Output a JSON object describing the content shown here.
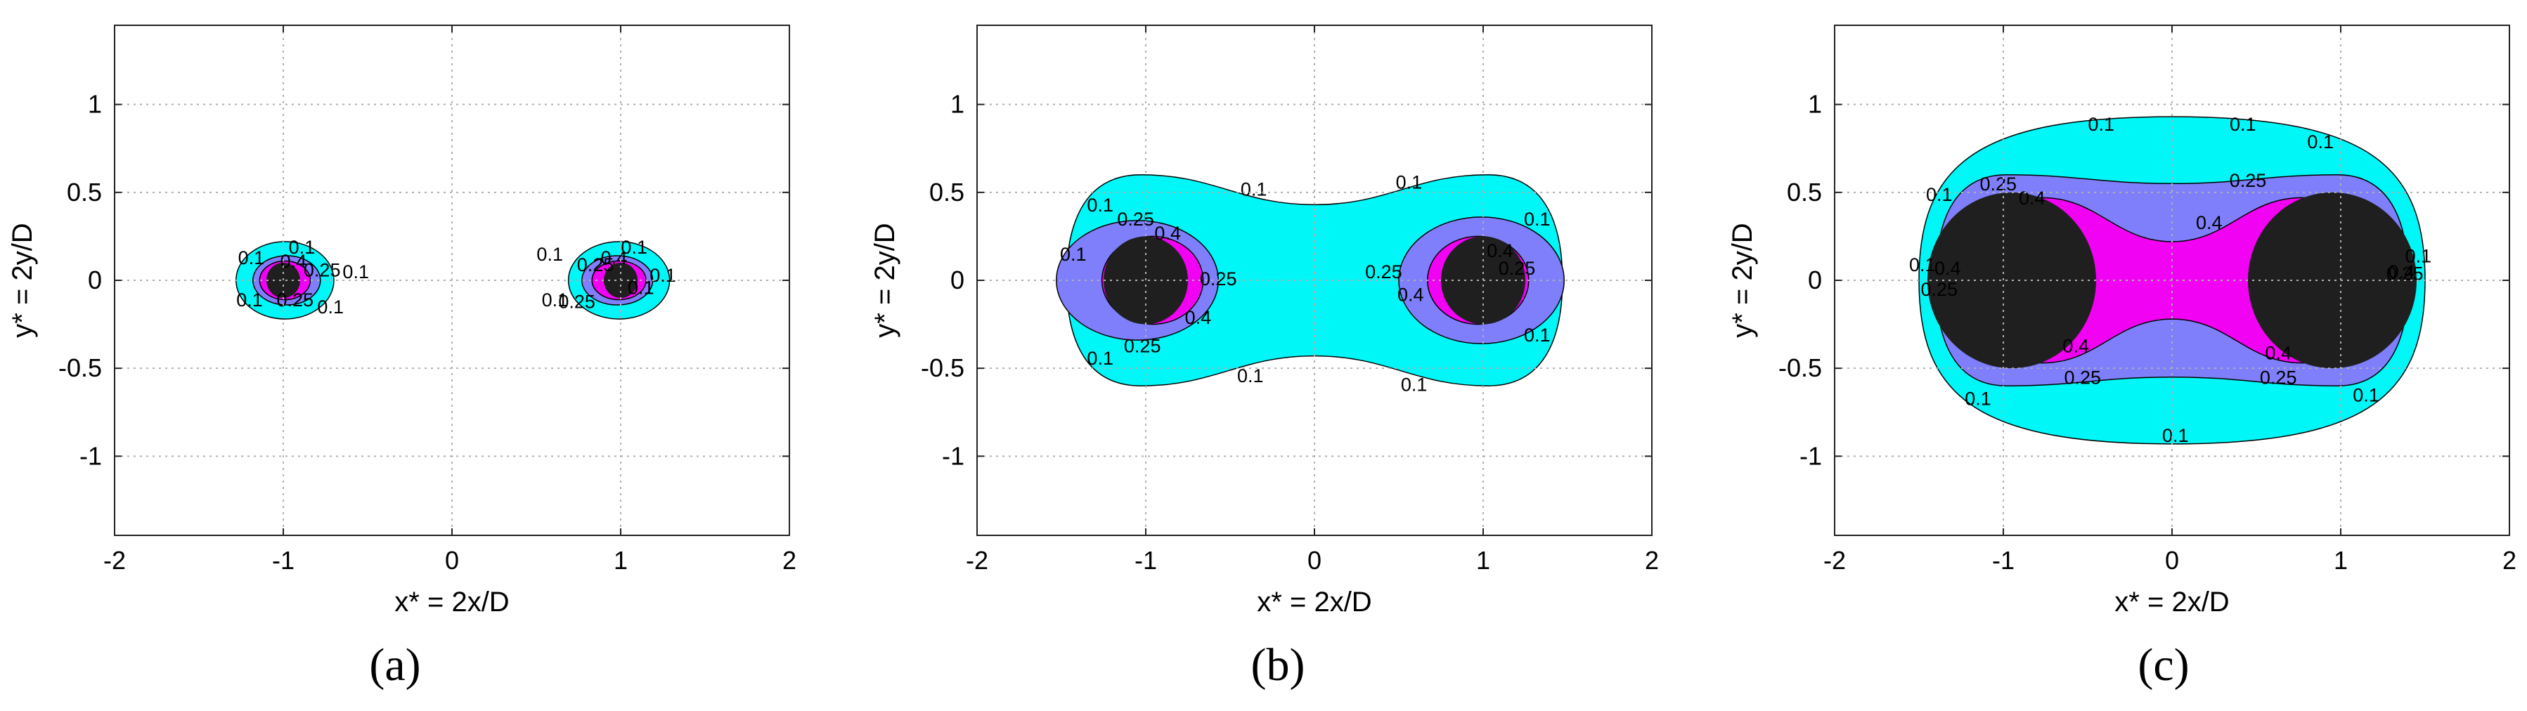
{
  "figure": {
    "panel_labels": [
      "(a)",
      "(b)",
      "(c)"
    ],
    "colors": {
      "level_0_1": "#00f7f7",
      "level_0_25": "#7f7ffb",
      "level_0_4": "#f202f2",
      "cylinder": "#1f1f1f",
      "contour_line": "#000000"
    }
  },
  "chart_data": [
    {
      "type": "contour",
      "panel": "(a)",
      "xlabel": "x* = 2x/D",
      "ylabel": "y* = 2y/D",
      "xlim": [
        -2,
        2
      ],
      "ylim": [
        -1.45,
        1.45
      ],
      "xticks": [
        -2,
        -1,
        0,
        1,
        2
      ],
      "yticks": [
        -1,
        -0.5,
        0,
        0.5,
        1
      ],
      "grid": true,
      "levels": [
        0.1,
        0.25,
        0.4
      ],
      "cylinders": [
        {
          "center": [
            -1,
            0
          ],
          "radius": 0.1
        },
        {
          "center": [
            1,
            0
          ],
          "radius": 0.1
        }
      ],
      "regions": [
        {
          "level": 0.1,
          "shapes": [
            {
              "cx": -0.99,
              "cy": 0.0,
              "rx": 0.29,
              "ry": 0.22
            },
            {
              "cx": 0.99,
              "cy": 0.0,
              "rx": 0.3,
              "ry": 0.22
            }
          ]
        },
        {
          "level": 0.25,
          "shapes": [
            {
              "cx": -0.98,
              "cy": 0.0,
              "rx": 0.2,
              "ry": 0.14
            },
            {
              "cx": 0.98,
              "cy": 0.0,
              "rx": 0.21,
              "ry": 0.14
            }
          ]
        },
        {
          "level": 0.4,
          "shapes": [
            {
              "cx": -0.99,
              "cy": 0.0,
              "rx": 0.15,
              "ry": 0.11
            },
            {
              "cx": 0.99,
              "cy": 0.0,
              "rx": 0.16,
              "ry": 0.11
            }
          ]
        }
      ],
      "contour_labels": [
        {
          "text": "0.1",
          "x": -0.89,
          "y": 0.18
        },
        {
          "text": "0.1",
          "x": -1.19,
          "y": 0.12
        },
        {
          "text": "0.1",
          "x": -1.2,
          "y": -0.12
        },
        {
          "text": "0.1",
          "x": -0.72,
          "y": -0.16
        },
        {
          "text": "0.1",
          "x": -0.57,
          "y": 0.04
        },
        {
          "text": "0.25",
          "x": -0.77,
          "y": 0.05
        },
        {
          "text": "0.25",
          "x": -0.93,
          "y": -0.12
        },
        {
          "text": "0.4",
          "x": -0.94,
          "y": 0.1
        },
        {
          "text": "0.1",
          "x": 1.08,
          "y": 0.18
        },
        {
          "text": "0.1",
          "x": 0.58,
          "y": 0.14
        },
        {
          "text": "0.1",
          "x": 0.61,
          "y": -0.12
        },
        {
          "text": "0.1",
          "x": 1.12,
          "y": -0.05
        },
        {
          "text": "0.1",
          "x": 1.25,
          "y": 0.02
        },
        {
          "text": "0.25",
          "x": 0.85,
          "y": 0.08
        },
        {
          "text": "0.25",
          "x": 0.74,
          "y": -0.13
        },
        {
          "text": "0.4",
          "x": 0.96,
          "y": 0.12
        }
      ]
    },
    {
      "type": "contour",
      "panel": "(b)",
      "xlabel": "x* = 2x/D",
      "ylabel": "y* = 2y/D",
      "xlim": [
        -2,
        2
      ],
      "ylim": [
        -1.45,
        1.45
      ],
      "xticks": [
        -2,
        -1,
        0,
        1,
        2
      ],
      "yticks": [
        -1,
        -0.5,
        0,
        0.5,
        1
      ],
      "grid": true,
      "levels": [
        0.1,
        0.25,
        0.4
      ],
      "cylinders": [
        {
          "center": [
            -1,
            0
          ],
          "radius": 0.25
        },
        {
          "center": [
            1,
            0
          ],
          "radius": 0.25
        }
      ],
      "regions": [
        {
          "level": 0.1,
          "shapes": [
            {
              "kind": "peanut",
              "outer_x": 1.47,
              "peak_y": 0.6,
              "neck_y": 0.43
            }
          ]
        },
        {
          "level": 0.25,
          "shapes": [
            {
              "cx": -1.05,
              "cy": 0.0,
              "rx": 0.48,
              "ry": 0.34
            },
            {
              "cx": 0.99,
              "cy": 0.0,
              "rx": 0.49,
              "ry": 0.36
            }
          ]
        },
        {
          "level": 0.4,
          "shapes": [
            {
              "cx": -0.96,
              "cy": 0.0,
              "rx": 0.3,
              "ry": 0.25
            },
            {
              "cx": 0.97,
              "cy": 0.0,
              "rx": 0.3,
              "ry": 0.25
            }
          ]
        }
      ],
      "contour_labels": [
        {
          "text": "0.1",
          "x": -0.36,
          "y": 0.51
        },
        {
          "text": "0.1",
          "x": 0.56,
          "y": 0.55
        },
        {
          "text": "0.1",
          "x": -1.27,
          "y": 0.42
        },
        {
          "text": "0.1",
          "x": -1.43,
          "y": 0.14
        },
        {
          "text": "0.1",
          "x": -1.27,
          "y": -0.45
        },
        {
          "text": "0.1",
          "x": -0.38,
          "y": -0.55
        },
        {
          "text": "0.1",
          "x": 0.59,
          "y": -0.6
        },
        {
          "text": "0.1",
          "x": 1.32,
          "y": 0.34
        },
        {
          "text": "0.1",
          "x": 1.32,
          "y": -0.32
        },
        {
          "text": "0.25",
          "x": -1.06,
          "y": 0.34
        },
        {
          "text": "0.25",
          "x": -0.57,
          "y": 0.0
        },
        {
          "text": "0.25",
          "x": -1.02,
          "y": -0.38
        },
        {
          "text": "0.25",
          "x": 0.41,
          "y": 0.04
        },
        {
          "text": "0.25",
          "x": 1.2,
          "y": 0.06
        },
        {
          "text": "0.4",
          "x": -0.87,
          "y": 0.26
        },
        {
          "text": "0.4",
          "x": -0.69,
          "y": -0.22
        },
        {
          "text": "0.4",
          "x": 0.57,
          "y": -0.09
        },
        {
          "text": "0.4",
          "x": 1.1,
          "y": 0.16
        }
      ]
    },
    {
      "type": "contour",
      "panel": "(c)",
      "xlabel": "x* = 2x/D",
      "ylabel": "y* = 2y/D",
      "xlim": [
        -2,
        2
      ],
      "ylim": [
        -1.45,
        1.45
      ],
      "xticks": [
        -2,
        -1,
        0,
        1,
        2
      ],
      "yticks": [
        -1,
        -0.5,
        0,
        0.5,
        1
      ],
      "grid": true,
      "levels": [
        0.1,
        0.25,
        0.4
      ],
      "cylinders": [
        {
          "center": [
            -0.95,
            0
          ],
          "radius": 0.5
        },
        {
          "center": [
            0.95,
            0
          ],
          "radius": 0.5
        }
      ],
      "regions": [
        {
          "level": 0.1,
          "shapes": [
            {
              "kind": "stadium",
              "outer_x": 1.5,
              "top_y": 0.93
            }
          ]
        },
        {
          "level": 0.25,
          "shapes": [
            {
              "kind": "waisted",
              "outer_x": 1.4,
              "peak_y": 0.6,
              "neck_y": 0.55
            }
          ]
        },
        {
          "level": 0.4,
          "shapes": [
            {
              "kind": "waisted",
              "outer_x": 1.1,
              "peak_y": 0.47,
              "neck_y": 0.22
            }
          ]
        }
      ],
      "contour_labels": [
        {
          "text": "0.1",
          "x": -0.42,
          "y": 0.88
        },
        {
          "text": "0.1",
          "x": 0.42,
          "y": 0.88
        },
        {
          "text": "0.1",
          "x": 0.88,
          "y": 0.78
        },
        {
          "text": "0.1",
          "x": -1.38,
          "y": 0.48
        },
        {
          "text": "0.1",
          "x": -1.48,
          "y": 0.08
        },
        {
          "text": "0.1",
          "x": -1.15,
          "y": -0.68
        },
        {
          "text": "0.1",
          "x": 0.02,
          "y": -0.89
        },
        {
          "text": "0.1",
          "x": 1.15,
          "y": -0.66
        },
        {
          "text": "0.1",
          "x": 1.46,
          "y": 0.13
        },
        {
          "text": "0.25",
          "x": -1.03,
          "y": 0.54
        },
        {
          "text": "0.25",
          "x": 0.45,
          "y": 0.56
        },
        {
          "text": "0.25",
          "x": -0.53,
          "y": -0.56
        },
        {
          "text": "0.25",
          "x": 0.63,
          "y": -0.56
        },
        {
          "text": "0.25",
          "x": -1.38,
          "y": -0.06
        },
        {
          "text": "0.25",
          "x": 1.38,
          "y": 0.03
        },
        {
          "text": "0.4",
          "x": -0.83,
          "y": 0.46
        },
        {
          "text": "0.4",
          "x": 0.22,
          "y": 0.32
        },
        {
          "text": "0.4",
          "x": -0.57,
          "y": -0.38
        },
        {
          "text": "0.4",
          "x": 0.63,
          "y": -0.42
        },
        {
          "text": "0.4",
          "x": -1.33,
          "y": 0.06
        },
        {
          "text": "0.4",
          "x": 1.36,
          "y": 0.04
        }
      ]
    }
  ]
}
